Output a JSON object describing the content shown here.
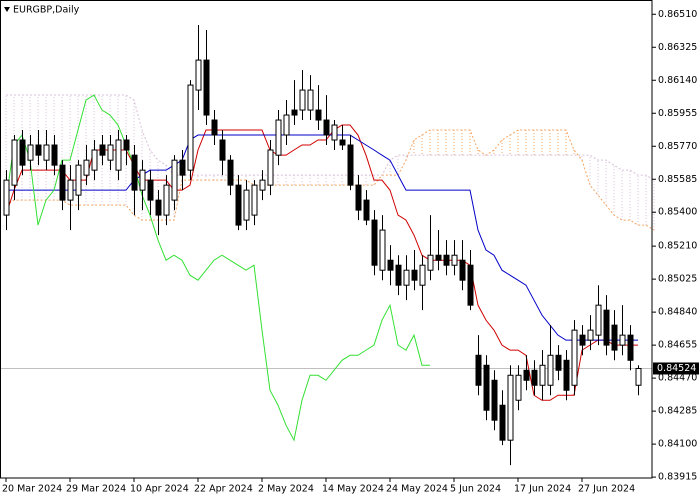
{
  "chart_data": {
    "type": "candlestick",
    "title": "EURGBP,Daily",
    "categories": [
      "20 Mar 2024",
      null,
      null,
      null,
      null,
      null,
      null,
      null,
      "29 Mar 2024",
      null,
      null,
      null,
      null,
      null,
      null,
      null,
      "10 Apr 2024",
      null,
      null,
      null,
      null,
      null,
      null,
      null,
      "22 Apr 2024",
      null,
      null,
      null,
      null,
      null,
      null,
      null,
      "2 May 2024",
      null,
      null,
      null,
      null,
      null,
      null,
      null,
      "14 May 2024",
      null,
      null,
      null,
      null,
      null,
      null,
      null,
      "24 May 2024",
      null,
      null,
      null,
      null,
      null,
      null,
      null,
      "5 Jun 2024",
      null,
      null,
      null,
      null,
      null,
      null,
      null,
      "17 Jun 2024",
      null,
      null,
      null,
      null,
      null,
      null,
      null,
      "27 Jun 2024",
      null,
      null,
      null,
      null,
      null,
      null,
      null,
      null,
      null
    ],
    "open": [
      0.85384,
      0.85552,
      0.85805,
      0.85692,
      0.85777,
      0.85692,
      0.85777,
      0.85664,
      0.85468,
      0.85496,
      0.85608,
      0.85636,
      0.85777,
      0.85692,
      0.85636,
      0.85805,
      0.8572,
      0.85524,
      0.8558,
      0.85468,
      0.85384,
      0.85468,
      0.85692,
      0.85636,
      0.86085,
      0.86253,
      0.85917,
      0.85805,
      0.85692,
      0.85552,
      0.85356,
      0.85384,
      0.85524,
      0.85552,
      0.8572,
      0.85833,
      0.85973,
      0.85973,
      0.85973,
      0.85973,
      0.85917,
      0.85805,
      0.85805,
      0.85777,
      0.85552,
      0.85468,
      0.85356,
      0.85075,
      0.85131,
      0.85103,
      0.84991,
      0.85075,
      0.84991,
      0.85075,
      0.85159,
      0.85159,
      0.85103,
      0.85131,
      0.85103,
      0.84598,
      0.84542,
      0.84458,
      0.84318,
      0.84122,
      0.84346,
      0.84514,
      0.84514,
      0.8443,
      0.8443,
      0.84598,
      0.8457,
      0.8443,
      0.84711,
      0.84683,
      0.84711,
      0.84851,
      0.84767,
      0.84655,
      0.84711,
      0.8443,
      null,
      null
    ],
    "high": [
      0.85636,
      0.85833,
      0.85861,
      0.85833,
      0.85861,
      0.85861,
      0.85833,
      0.85692,
      0.85664,
      0.85692,
      0.85777,
      0.85805,
      0.85833,
      0.85833,
      0.85861,
      0.85833,
      0.85777,
      0.85692,
      0.85636,
      0.85524,
      0.85608,
      0.8572,
      0.85749,
      0.86141,
      0.8645,
      0.86422,
      0.85973,
      0.85861,
      0.8572,
      0.85608,
      0.8558,
      0.8558,
      0.85636,
      0.85805,
      0.85973,
      0.86029,
      0.86141,
      0.86197,
      0.86169,
      0.86113,
      0.86057,
      0.85917,
      0.85889,
      0.85833,
      0.85608,
      0.85524,
      0.85412,
      0.85384,
      0.85216,
      0.85159,
      0.85159,
      0.85188,
      0.85159,
      0.85384,
      0.853,
      0.85244,
      0.85244,
      0.85244,
      0.85188,
      0.84711,
      0.84598,
      0.84514,
      0.84402,
      0.84542,
      0.84542,
      0.84598,
      0.8457,
      0.84627,
      0.84767,
      0.84655,
      0.84627,
      0.84795,
      0.84767,
      0.84823,
      0.84991,
      0.84935,
      0.84851,
      0.84879,
      0.84767,
      0.84542,
      null,
      null
    ],
    "low": [
      0.853,
      0.85468,
      0.85608,
      0.85636,
      0.85664,
      0.85636,
      0.85608,
      0.85412,
      0.853,
      0.85412,
      0.85552,
      0.8558,
      0.85664,
      0.85636,
      0.8558,
      0.85664,
      0.85384,
      0.85412,
      0.85384,
      0.85272,
      0.85328,
      0.85412,
      0.85524,
      0.8558,
      0.85973,
      0.85889,
      0.85777,
      0.85608,
      0.85496,
      0.853,
      0.853,
      0.85328,
      0.85468,
      0.85496,
      0.85664,
      0.85777,
      0.85889,
      0.85917,
      0.85917,
      0.85861,
      0.85777,
      0.85749,
      0.85749,
      0.85524,
      0.85356,
      0.85328,
      0.85047,
      0.85019,
      0.84991,
      0.84935,
      0.84907,
      0.84963,
      0.84851,
      0.85019,
      0.85075,
      0.85047,
      0.85047,
      0.84963,
      0.84851,
      0.84374,
      0.84234,
      0.84178,
      0.84094,
      0.83982,
      0.8429,
      0.84402,
      0.84374,
      0.84346,
      0.84374,
      0.84458,
      0.84346,
      0.84374,
      0.84598,
      0.84627,
      0.84655,
      0.84598,
      0.8457,
      0.84598,
      0.84514,
      0.84374,
      null,
      null
    ],
    "close": [
      0.8558,
      0.85805,
      0.85664,
      0.85777,
      0.8572,
      0.85777,
      0.85664,
      0.85468,
      0.8558,
      0.85664,
      0.85692,
      0.85749,
      0.8572,
      0.85777,
      0.85805,
      0.85749,
      0.85524,
      0.85636,
      0.85468,
      0.85384,
      0.85552,
      0.85692,
      0.85608,
      0.86113,
      0.86253,
      0.85945,
      0.85833,
      0.85692,
      0.85552,
      0.85328,
      0.85524,
      0.85552,
      0.8558,
      0.85749,
      0.85917,
      0.85945,
      0.85945,
      0.86085,
      0.86085,
      0.85917,
      0.85833,
      0.85889,
      0.85777,
      0.85552,
      0.85412,
      0.85356,
      0.85103,
      0.853,
      0.85075,
      0.84991,
      0.85075,
      0.85019,
      0.85103,
      0.85159,
      0.85131,
      0.85103,
      0.85159,
      0.85019,
      0.84879,
      0.8443,
      0.8429,
      0.84234,
      0.84122,
      0.84486,
      0.84486,
      0.84458,
      0.8443,
      0.84542,
      0.84598,
      0.84514,
      0.84402,
      0.84739,
      0.84655,
      0.84739,
      0.84879,
      0.84655,
      0.84627,
      0.84711,
      0.8457,
      0.84524,
      null,
      null
    ],
    "bull_color": "#ffffff",
    "bear_color": "#000000",
    "lines": [
      {
        "color": "#d00000",
        "values": [
          0.85384,
          0.85524,
          0.85636,
          0.85636,
          0.85636,
          0.85636,
          0.85636,
          0.85636,
          0.8558,
          0.8558,
          0.8558,
          0.85749,
          0.85749,
          0.85749,
          0.85749,
          0.85749,
          0.85664,
          0.8558,
          0.8558,
          0.8558,
          0.8558,
          0.85524,
          0.85524,
          0.85552,
          0.85749,
          0.85861,
          0.85861,
          0.85861,
          0.85861,
          0.85861,
          0.85861,
          0.85861,
          0.85861,
          0.85749,
          0.8572,
          0.8572,
          0.85749,
          0.85777,
          0.85777,
          0.85805,
          0.85805,
          0.85861,
          0.85889,
          0.85889,
          0.85833,
          0.8572,
          0.8558,
          0.8558,
          0.85524,
          0.85384,
          0.85356,
          0.85272,
          0.85159,
          0.85131,
          0.85131,
          0.85131,
          0.85131,
          0.85131,
          0.85103,
          0.84879,
          0.84795,
          0.84739,
          0.84655,
          0.84627,
          0.84627,
          0.84598,
          0.84374,
          0.84346,
          0.84346,
          0.84374,
          0.84374,
          0.84374,
          0.84627,
          0.84655,
          0.84683,
          0.84683,
          0.84655,
          0.84655,
          0.84655,
          0.84655,
          null,
          null
        ]
      },
      {
        "color": "#0000c8",
        "values": [
          0.85524,
          0.85524,
          0.85524,
          0.85524,
          0.85524,
          0.85524,
          0.85524,
          0.85524,
          0.85524,
          0.85524,
          0.85524,
          0.85524,
          0.85524,
          0.85524,
          0.85524,
          0.85524,
          0.8558,
          0.85608,
          0.85636,
          0.85636,
          0.85636,
          0.85664,
          0.85692,
          0.85805,
          0.85833,
          0.85833,
          0.85833,
          0.85833,
          0.85833,
          0.85833,
          0.85833,
          0.85833,
          0.85833,
          0.85833,
          0.85833,
          0.85833,
          0.85833,
          0.85833,
          0.85833,
          0.85833,
          0.85833,
          0.85833,
          0.85833,
          0.85833,
          0.85805,
          0.85777,
          0.85749,
          0.8572,
          0.85692,
          0.85608,
          0.85524,
          0.85524,
          0.85524,
          0.85524,
          0.85524,
          0.85524,
          0.85524,
          0.85524,
          0.85524,
          0.853,
          0.85188,
          0.85159,
          0.85075,
          0.85047,
          0.85019,
          0.84991,
          0.84907,
          0.84823,
          0.84767,
          0.84711,
          0.84683,
          0.84683,
          0.84683,
          0.84683,
          0.84683,
          0.84683,
          0.84683,
          0.84683,
          0.84683,
          0.84683,
          null,
          null
        ]
      },
      {
        "color": "#33e033",
        "values": [
          0.85468,
          0.85777,
          0.85833,
          0.85692,
          0.85328,
          0.85468,
          0.85524,
          0.85692,
          0.85692,
          0.85861,
          0.86029,
          0.86057,
          0.85973,
          0.85945,
          0.85889,
          0.85777,
          0.85664,
          0.85496,
          0.85384,
          0.85244,
          0.85131,
          0.85159,
          0.85131,
          0.85047,
          0.85019,
          0.85075,
          0.85131,
          0.85159,
          0.85131,
          0.85103,
          0.85075,
          0.85103,
          0.84739,
          0.84402,
          0.84318,
          0.84206,
          0.84122,
          0.84346,
          0.84486,
          0.84486,
          0.84458,
          0.84514,
          0.8457,
          0.84598,
          0.84598,
          0.84627,
          0.84655,
          0.84795,
          0.84879,
          0.84655,
          0.84627,
          0.84711,
          0.84542,
          0.84542,
          null,
          null,
          null,
          null,
          null,
          null,
          null,
          null,
          null,
          null,
          null,
          null,
          null,
          null,
          null,
          null,
          null,
          null,
          null,
          null,
          null,
          null,
          null,
          null,
          null,
          null,
          null,
          null
        ]
      }
    ],
    "cloud": {
      "span_a": {
        "color": "#f4a460",
        "values": [
          0.8544,
          0.85468,
          0.85468,
          0.85468,
          0.85468,
          0.85468,
          0.85468,
          0.85468,
          0.8544,
          0.8544,
          0.8544,
          0.8544,
          0.8544,
          0.8544,
          0.8544,
          0.8544,
          0.85384,
          0.85356,
          0.85356,
          0.85356,
          0.85356,
          0.85356,
          0.8558,
          0.8558,
          0.8558,
          0.8558,
          0.8558,
          0.8558,
          0.8558,
          0.8558,
          0.8558,
          0.85552,
          0.85552,
          0.85552,
          0.85552,
          0.85552,
          0.85552,
          0.85552,
          0.85552,
          0.85552,
          0.85552,
          0.85552,
          0.85552,
          0.85552,
          0.85552,
          0.85552,
          0.85552,
          0.85608,
          0.85608,
          0.85608,
          0.85692,
          0.85805,
          0.85833,
          0.85861,
          0.85861,
          0.85861,
          0.85861,
          0.85861,
          0.85861,
          0.85749,
          0.8572,
          0.85749,
          0.85805,
          0.85833,
          0.85861,
          0.85861,
          0.85861,
          0.85861,
          0.85861,
          0.85861,
          0.85861,
          0.85749,
          0.85692,
          0.85552,
          0.85496,
          0.8544,
          0.85384,
          0.85356,
          0.85356,
          0.85328,
          0.85328,
          0.853
        ]
      },
      "span_b": {
        "color": "#d8bfd8",
        "values": [
          0.86057,
          0.86057,
          0.86057,
          0.86057,
          0.86057,
          0.86057,
          0.86057,
          0.86057,
          0.86057,
          0.86057,
          0.86057,
          0.86057,
          0.86057,
          0.86057,
          0.86057,
          0.86057,
          0.86029,
          0.85861,
          0.85749,
          0.85692,
          0.85664,
          0.85608,
          0.85608,
          0.85608,
          0.85608,
          0.85608,
          0.85608,
          0.85608,
          0.85608,
          0.85608,
          0.85608,
          0.85608,
          0.85608,
          0.85608,
          0.85608,
          0.85608,
          0.85608,
          0.85608,
          0.85608,
          0.85608,
          0.85608,
          0.85608,
          0.85608,
          0.85608,
          0.85608,
          0.85608,
          0.85608,
          0.85608,
          0.85692,
          0.8572,
          0.8572,
          0.8572,
          0.8572,
          0.8572,
          0.8572,
          0.8572,
          0.8572,
          0.8572,
          0.8572,
          0.8572,
          0.8572,
          0.8572,
          0.8572,
          0.8572,
          0.8572,
          0.8572,
          0.8572,
          0.8572,
          0.8572,
          0.8572,
          0.8572,
          0.8572,
          0.8572,
          0.8572,
          0.85692,
          0.85692,
          0.85664,
          0.85636,
          0.85636,
          0.85608,
          0.85608,
          0.8558
        ]
      }
    },
    "last_price": 0.84524,
    "last_price_line_color": "#c0c0c0",
    "ylim": [
      0.8391,
      0.8659
    ],
    "yticks": [
      {
        "value": 0.8651,
        "label": "0.86510"
      },
      0.86325,
      {
        "value": 0.8614,
        "label": "0.86140"
      },
      0.85955,
      {
        "value": 0.8577,
        "label": "0.85770"
      },
      0.85585,
      {
        "value": 0.854,
        "label": "0.85400"
      },
      {
        "value": 0.8521,
        "label": "0.85210"
      },
      0.85025,
      {
        "value": 0.8484,
        "label": "0.84840"
      },
      0.84655,
      {
        "value": 0.8447,
        "label": "0.84470"
      },
      0.84285,
      {
        "value": 0.841,
        "label": "0.84100"
      },
      0.83915
    ],
    "grid": false
  }
}
